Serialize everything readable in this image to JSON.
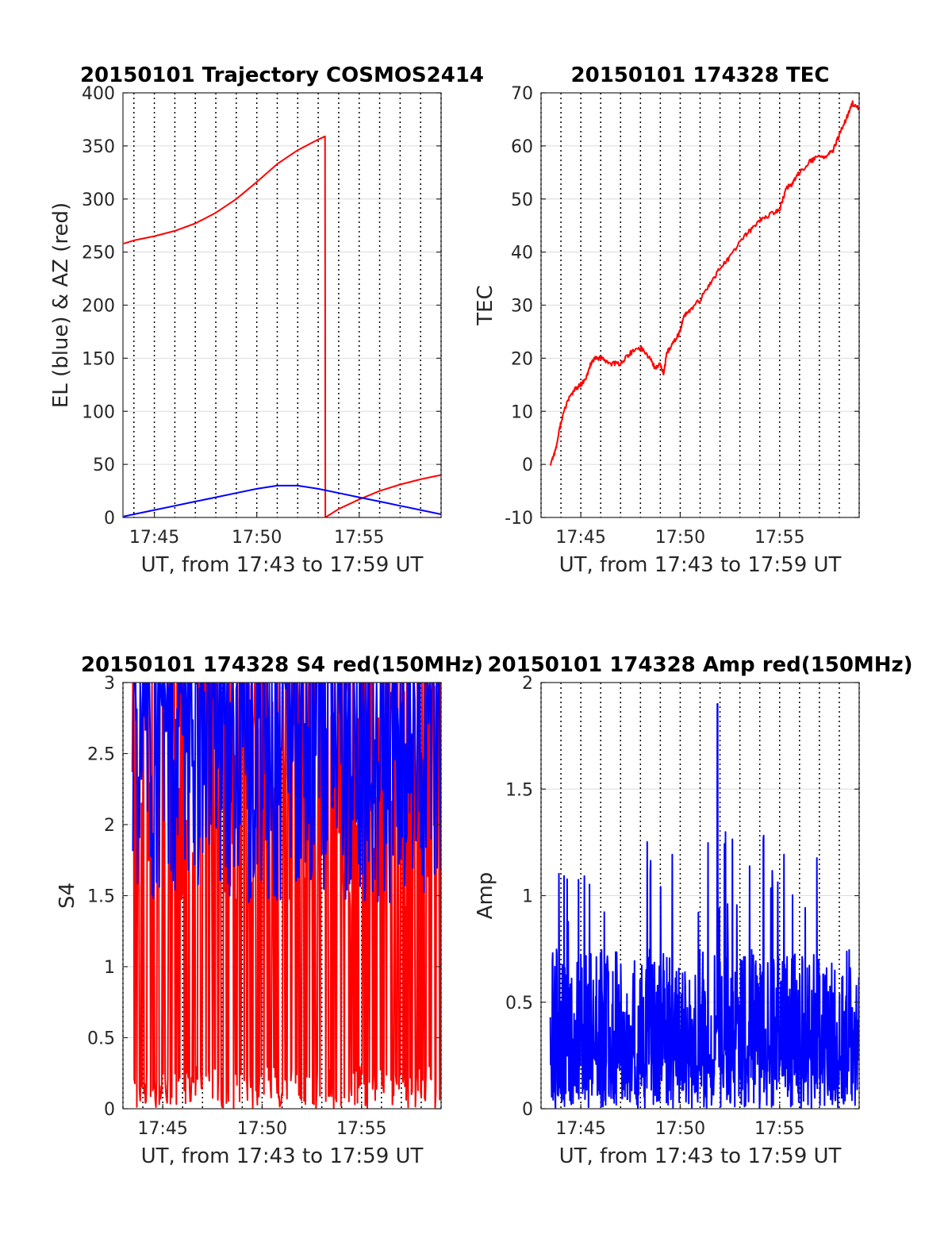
{
  "chart_data": [
    {
      "type": "line",
      "title": "20150101 Trajectory COSMOS2414",
      "xlabel": "UT, from 17:43 to 17:59 UT",
      "ylabel": "EL (blue) & AZ (red)",
      "xlim": [
        "17:43:28",
        "17:59:00"
      ],
      "ylim": [
        0,
        400
      ],
      "yticks": [
        0,
        50,
        100,
        150,
        200,
        250,
        300,
        350,
        400
      ],
      "xticks": [
        "17:45",
        "17:50",
        "17:55"
      ],
      "grid": true,
      "series": [
        {
          "color": "#ff0000",
          "x": [
            "17:43:30",
            "17:44:00",
            "17:45:00",
            "17:46:00",
            "17:47:00",
            "17:48:00",
            "17:49:00",
            "17:50:00",
            "17:51:00",
            "17:52:00",
            "17:53:00",
            "17:53:20",
            "17:53:21",
            "17:54:00",
            "17:55:00",
            "17:56:00",
            "17:57:00",
            "17:58:00",
            "17:59:00"
          ],
          "values": [
            258,
            261,
            265,
            270,
            277,
            287,
            300,
            316,
            333,
            346,
            356,
            359,
            0,
            8,
            17,
            25,
            31,
            36,
            40
          ]
        },
        {
          "color": "#0000ff",
          "x": [
            "17:43:30",
            "17:44:00",
            "17:45:00",
            "17:46:00",
            "17:47:00",
            "17:48:00",
            "17:49:00",
            "17:50:00",
            "17:51:00",
            "17:51:30",
            "17:52:00",
            "17:53:00",
            "17:54:00",
            "17:55:00",
            "17:56:00",
            "17:57:00",
            "17:58:00",
            "17:59:00"
          ],
          "values": [
            1,
            3,
            7,
            11,
            15,
            19,
            23,
            27,
            30,
            30,
            30,
            27,
            23,
            19,
            15,
            11,
            7,
            3
          ]
        }
      ]
    },
    {
      "type": "line",
      "title": "20150101 174328 TEC",
      "xlabel": "UT, from 17:43 to 17:59 UT",
      "ylabel": "TEC",
      "xlim": [
        "17:43:00",
        "17:59:00"
      ],
      "ylim": [
        -10,
        70
      ],
      "yticks": [
        -10,
        0,
        10,
        20,
        30,
        40,
        50,
        60,
        70
      ],
      "xticks": [
        "17:45",
        "17:50",
        "17:55"
      ],
      "grid": true,
      "series": [
        {
          "color": "#ff0000",
          "x": [
            "17:43:28",
            "17:43:45",
            "17:44:00",
            "17:44:20",
            "17:44:40",
            "17:45:00",
            "17:45:15",
            "17:45:30",
            "17:45:45",
            "17:46:00",
            "17:46:30",
            "17:47:00",
            "17:47:30",
            "17:48:00",
            "17:48:30",
            "17:48:45",
            "17:49:00",
            "17:49:10",
            "17:49:20",
            "17:49:40",
            "17:50:00",
            "17:50:10",
            "17:50:30",
            "17:51:00",
            "17:51:30",
            "17:52:00",
            "17:52:30",
            "17:53:00",
            "17:53:30",
            "17:54:00",
            "17:54:30",
            "17:55:00",
            "17:55:20",
            "17:55:40",
            "17:56:00",
            "17:56:30",
            "17:57:00",
            "17:57:20",
            "17:57:40",
            "17:58:00",
            "17:58:20",
            "17:58:40",
            "17:59:00"
          ],
          "values": [
            0,
            3,
            8,
            12,
            14,
            15,
            16,
            19,
            20,
            20,
            19,
            19,
            21,
            22,
            20,
            18,
            19,
            17,
            21,
            23,
            25,
            28,
            29,
            31,
            34,
            37,
            39,
            42,
            44,
            46,
            47,
            48,
            52,
            53,
            55,
            57,
            58,
            58,
            59,
            62,
            65,
            68,
            67
          ]
        }
      ]
    },
    {
      "type": "line",
      "title": "20150101 174328 S4 red(150MHz)",
      "xlabel": "UT, from 17:43 to 17:59 UT",
      "ylabel": "S4",
      "xlim": [
        "17:43:00",
        "17:59:00"
      ],
      "ylim": [
        0,
        3
      ],
      "yticks": [
        0,
        0.5,
        1,
        1.5,
        2,
        2.5,
        3
      ],
      "xticks": [
        "17:45",
        "17:50",
        "17:55"
      ],
      "grid": true,
      "series": [
        {
          "color": "#ff0000",
          "x_range": [
            "17:43:28",
            "17:59:00"
          ],
          "samples": 470,
          "value_range": [
            0,
            3
          ],
          "note_values": "dense noisy oscillation between 0 and 3"
        },
        {
          "color": "#0000ff",
          "x_range": [
            "17:43:28",
            "17:59:00"
          ],
          "samples": 470,
          "value_range": [
            1.2,
            3
          ],
          "note_values": "dense noisy oscillation between about 1.3 and 3"
        }
      ]
    },
    {
      "type": "line",
      "title": "20150101 174328 Amp red(150MHz)",
      "xlabel": "UT, from 17:43 to 17:59 UT",
      "ylabel": "Amp",
      "xlim": [
        "17:43:00",
        "17:59:00"
      ],
      "ylim": [
        0,
        2
      ],
      "yticks": [
        0,
        0.5,
        1,
        1.5,
        2
      ],
      "xticks": [
        "17:45",
        "17:50",
        "17:55"
      ],
      "grid": true,
      "series": [
        {
          "color": "#0000ff",
          "x_range": [
            "17:43:28",
            "17:59:00"
          ],
          "samples": 900,
          "value_range": [
            0,
            1.9
          ],
          "peak": 1.9
        }
      ]
    }
  ]
}
